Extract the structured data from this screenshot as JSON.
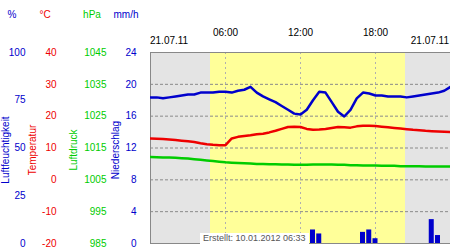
{
  "chart_data": {
    "type": "line",
    "annotations": [
      "21.07.11",
      "21.07.11",
      "Erstellt: 10.01.2012 06:33"
    ],
    "x": [
      0,
      0.5,
      1,
      1.5,
      2,
      2.5,
      3,
      3.5,
      4,
      4.5,
      5,
      5.5,
      6,
      6.5,
      7,
      7.5,
      8,
      8.5,
      9,
      9.5,
      10,
      10.5,
      11,
      11.5,
      12,
      12.5,
      13,
      13.5,
      14,
      14.5,
      15,
      15.5,
      16,
      16.5,
      17,
      17.5,
      18,
      18.5,
      19,
      19.5,
      20,
      20.5,
      21,
      21.5,
      22,
      22.5,
      23,
      23.5,
      24
    ],
    "xlim": [
      0,
      24
    ],
    "xticks": [
      {
        "value": 6,
        "label": "06:00"
      },
      {
        "value": 12,
        "label": "12:00"
      },
      {
        "value": 18,
        "label": "18:00"
      }
    ],
    "grid": true,
    "daylight": [
      4.8,
      20.4
    ],
    "series": [
      {
        "name": "Luftfeuchtigkeit",
        "unit": "%",
        "type": "line",
        "color": "#0000cc",
        "ylim": [
          0,
          100
        ],
        "yticks": [
          0,
          25,
          50,
          75,
          100
        ],
        "values": [
          76.5,
          76.5,
          76,
          76.5,
          77,
          77.5,
          78,
          78,
          79,
          79,
          79,
          79.5,
          79.5,
          79,
          80,
          80.5,
          82,
          79,
          77,
          75.5,
          74,
          72,
          70,
          68,
          67.5,
          70,
          75,
          79.5,
          79,
          74,
          69,
          66.5,
          70,
          76,
          79,
          78.5,
          77.5,
          77.5,
          77,
          77,
          77,
          76.5,
          77,
          77.5,
          78,
          78.5,
          79,
          80,
          82
        ]
      },
      {
        "name": "Temperatur",
        "unit": "°C",
        "type": "line",
        "color": "#ee0000",
        "ylim": [
          -20,
          40
        ],
        "yticks": [
          -20,
          -10,
          0,
          10,
          20,
          30,
          40
        ],
        "values": [
          13,
          12.9,
          12.8,
          12.7,
          12.5,
          12.3,
          12.1,
          11.9,
          11.5,
          11.2,
          11,
          10.9,
          10.9,
          13,
          13.5,
          13.8,
          14,
          14.3,
          14.5,
          14.9,
          15.4,
          16,
          16.6,
          16.7,
          16.6,
          16,
          15.7,
          15.8,
          16,
          16.3,
          16.6,
          16.5,
          16.4,
          16.8,
          17,
          17,
          16.9,
          16.7,
          16.5,
          16.3,
          16.1,
          15.9,
          15.7,
          15.6,
          15.4,
          15.3,
          15.2,
          15.1,
          15
        ]
      },
      {
        "name": "Luftdruck",
        "unit": "hPa",
        "type": "line",
        "color": "#00cc00",
        "ylim": [
          985,
          1045
        ],
        "yticks": [
          985,
          995,
          1005,
          1015,
          1025,
          1035,
          1045
        ],
        "values": [
          1012.2,
          1012.1,
          1012,
          1012,
          1011.9,
          1011.8,
          1011.7,
          1011.5,
          1011.3,
          1011.1,
          1010.9,
          1010.7,
          1010.5,
          1010.4,
          1010.3,
          1010.2,
          1010.1,
          1010,
          1010,
          1009.9,
          1009.9,
          1009.8,
          1009.8,
          1009.7,
          1009.7,
          1009.7,
          1009.8,
          1009.8,
          1009.8,
          1009.8,
          1009.7,
          1009.7,
          1009.6,
          1009.6,
          1009.5,
          1009.5,
          1009.5,
          1009.4,
          1009.4,
          1009.4,
          1009.3,
          1009.3,
          1009.3,
          1009.3,
          1009.2,
          1009.2,
          1009.2,
          1009.2,
          1009.2
        ]
      },
      {
        "name": "Niederschlag",
        "unit": "mm/h",
        "type": "bar",
        "color": "#0000cc",
        "ylim": [
          0,
          24
        ],
        "yticks": [
          0,
          4,
          8,
          12,
          16,
          20,
          24
        ],
        "values": [
          0,
          0,
          0,
          0,
          0,
          0,
          0,
          0,
          0,
          0,
          0,
          0,
          0,
          0,
          0,
          0,
          0,
          0,
          0,
          0,
          0,
          0,
          0,
          0,
          0,
          0,
          1.7,
          1.2,
          0,
          0,
          0,
          0,
          0,
          0,
          1.4,
          1.7,
          0.6,
          0,
          0,
          0,
          0,
          0,
          0,
          0,
          0,
          3,
          1,
          0,
          0
        ]
      }
    ]
  }
}
